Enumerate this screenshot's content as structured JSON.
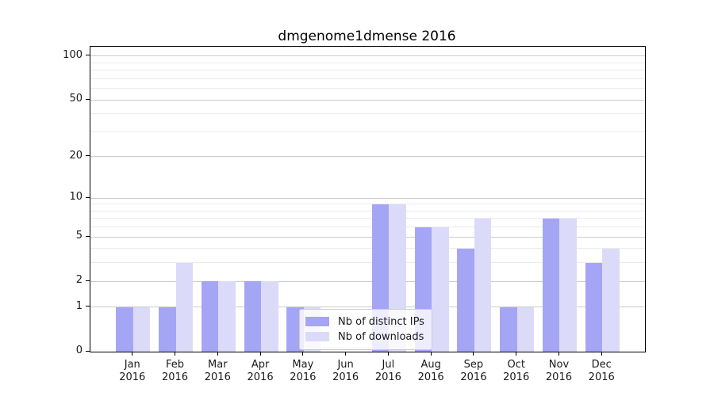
{
  "chart_data": {
    "type": "bar",
    "title": "dmgenome1dmense 2016",
    "categories": [
      "Jan",
      "Feb",
      "Mar",
      "Apr",
      "May",
      "Jun",
      "Jul",
      "Aug",
      "Sep",
      "Oct",
      "Nov",
      "Dec"
    ],
    "x_year_label": "2016",
    "series": [
      {
        "name": "Nb of distinct IPs",
        "color": "#a5a5f6",
        "values": [
          1,
          1,
          2,
          2,
          1,
          0,
          9,
          6,
          4,
          1,
          7,
          3
        ]
      },
      {
        "name": "Nb of downloads",
        "color": "#dbdbf9",
        "values": [
          1,
          3,
          2,
          2,
          1,
          0,
          9,
          6,
          7,
          1,
          7,
          4
        ]
      }
    ],
    "yscale": "log1p",
    "ylim": [
      0,
      116
    ],
    "y_ticks": [
      0,
      1,
      2,
      5,
      10,
      20,
      50,
      100
    ],
    "y_minor_gridlines": [
      3,
      4,
      6,
      7,
      8,
      9,
      30,
      40,
      60,
      70,
      80,
      90
    ],
    "grid": "on",
    "legend_position": "lower-center",
    "colors": {
      "major_grid": "#cccccc",
      "minor_grid": "#ebebeb",
      "axis": "#000000",
      "text": "#1a1a1a",
      "legend_border": "#cccccc",
      "legend_bg": "rgba(255,255,255,0.8)"
    }
  }
}
